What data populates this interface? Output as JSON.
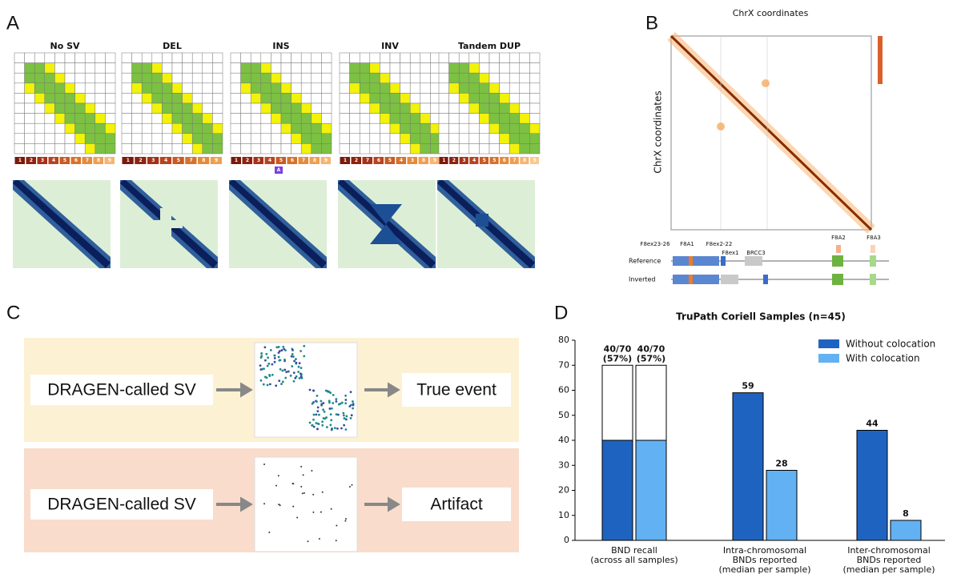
{
  "panel_labels": [
    "A",
    "B",
    "C",
    "D"
  ],
  "panel_a": {
    "matrices": [
      {
        "title": "No SV",
        "segments": [
          "1",
          "2",
          "3",
          "4",
          "5",
          "6",
          "7",
          "8",
          "9"
        ]
      },
      {
        "title": "DEL",
        "segments": [
          "1",
          "2",
          "3",
          "4",
          "5",
          "7",
          "8",
          "9"
        ]
      },
      {
        "title": "INS",
        "segments": [
          "1",
          "2",
          "3",
          "4",
          "5",
          "6",
          "7",
          "8",
          "9"
        ],
        "insert": "A"
      },
      {
        "title": "INV",
        "segments": [
          "1",
          "2",
          "7",
          "6",
          "5",
          "4",
          "3",
          "8",
          "9"
        ]
      },
      {
        "title": "Tandem DUP",
        "segments": [
          "1",
          "2",
          "3",
          "4",
          "5",
          "5",
          "6",
          "7",
          "8",
          "9"
        ]
      }
    ]
  },
  "panel_b": {
    "title": "ChrX coordinates",
    "y_label": "ChrX coordinates",
    "genes": [
      "F8ex23-26",
      "F8A1",
      "F8ex2-22",
      "F8ex1",
      "BRCC3",
      "F8A2",
      "F8A3"
    ],
    "tracks": [
      "Reference",
      "Inverted"
    ]
  },
  "panel_c": {
    "rows": [
      {
        "input": "DRAGEN-called SV",
        "result": "True event"
      },
      {
        "input": "DRAGEN-called SV",
        "result": "Artifact"
      }
    ]
  },
  "chart_data": {
    "type": "bar",
    "title": "TruPath Coriell Samples (n=45)",
    "categories": [
      [
        "BND recall",
        "(across all samples)"
      ],
      [
        "Intra-chromosomal",
        "BNDs reported",
        "(median per sample)"
      ],
      [
        "Inter-chromosomal",
        "BNDs reported",
        "(median per sample)"
      ]
    ],
    "series": [
      {
        "name": "Without colocation",
        "color": "#1f63c0",
        "values": [
          40,
          59,
          44
        ],
        "outline": [
          70,
          null,
          null
        ],
        "value_labels": [
          [
            "40/70",
            "(57%)"
          ],
          [
            "59"
          ],
          [
            "44"
          ]
        ]
      },
      {
        "name": "With colocation",
        "color": "#62b1f3",
        "values": [
          40,
          28,
          8
        ],
        "outline": [
          70,
          null,
          null
        ],
        "value_labels": [
          [
            "40/70",
            "(57%)"
          ],
          [
            "28"
          ],
          [
            "8"
          ]
        ]
      }
    ],
    "ylim": [
      0,
      80
    ],
    "yticks": [
      0,
      10,
      20,
      30,
      40,
      50,
      60,
      70,
      80
    ],
    "legend": "upper right"
  }
}
